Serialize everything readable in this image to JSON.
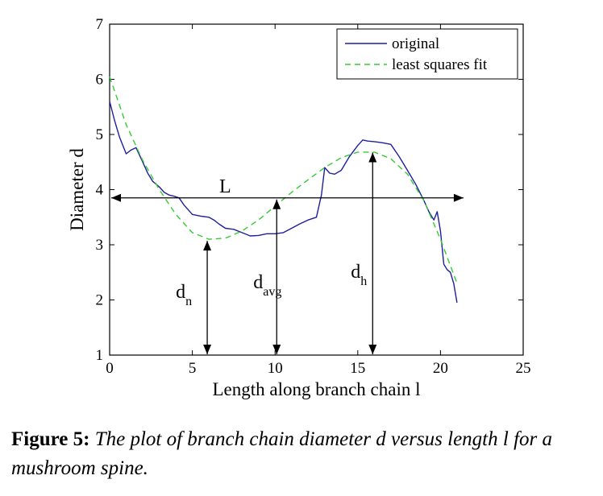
{
  "chart_data": {
    "type": "line",
    "xlabel": "Length along branch chain l",
    "ylabel": "Diameter d",
    "xlim": [
      0,
      25
    ],
    "ylim": [
      1,
      7
    ],
    "xticks": [
      0,
      5,
      10,
      15,
      20,
      25
    ],
    "yticks": [
      1,
      2,
      3,
      4,
      5,
      6,
      7
    ],
    "grid": false,
    "legend_position": "top-right",
    "series": [
      {
        "name": "original",
        "color": "#1f1f9e",
        "style": "solid",
        "x": [
          0,
          0.3,
          0.6,
          1.0,
          1.3,
          1.6,
          2.0,
          2.3,
          2.6,
          3.0,
          3.3,
          3.6,
          3.9,
          4.2,
          4.5,
          5.0,
          5.5,
          6.0,
          6.3,
          6.6,
          7.0,
          7.5,
          8.0,
          8.5,
          9.0,
          9.5,
          10.0,
          10.5,
          11.0,
          11.5,
          12.0,
          12.5,
          12.8,
          13.0,
          13.3,
          13.6,
          14.0,
          14.5,
          15.0,
          15.3,
          15.6,
          16.0,
          16.5,
          17.0,
          17.5,
          18.0,
          18.5,
          19.0,
          19.3,
          19.6,
          19.8,
          20.0,
          20.2,
          20.4,
          20.6,
          20.8,
          21.0
        ],
        "y": [
          5.6,
          5.25,
          4.95,
          4.65,
          4.72,
          4.76,
          4.5,
          4.3,
          4.15,
          4.05,
          3.95,
          3.9,
          3.88,
          3.85,
          3.72,
          3.55,
          3.52,
          3.5,
          3.45,
          3.38,
          3.3,
          3.28,
          3.22,
          3.16,
          3.17,
          3.2,
          3.2,
          3.22,
          3.3,
          3.38,
          3.45,
          3.5,
          3.9,
          4.4,
          4.3,
          4.28,
          4.35,
          4.6,
          4.8,
          4.9,
          4.88,
          4.87,
          4.85,
          4.82,
          4.6,
          4.35,
          4.1,
          3.8,
          3.6,
          3.45,
          3.6,
          3.25,
          2.65,
          2.55,
          2.5,
          2.3,
          1.95
        ]
      },
      {
        "name": "least squares fit",
        "color": "#33cc33",
        "style": "dashed",
        "x": [
          0,
          1,
          2,
          3,
          4,
          5,
          6,
          7,
          8,
          9,
          10,
          11,
          12,
          13,
          14,
          15,
          16,
          17,
          18,
          19,
          20,
          21
        ],
        "y": [
          6.05,
          5.18,
          4.53,
          4.0,
          3.55,
          3.22,
          3.1,
          3.12,
          3.25,
          3.45,
          3.7,
          3.95,
          4.18,
          4.4,
          4.58,
          4.68,
          4.68,
          4.56,
          4.28,
          3.8,
          3.1,
          2.3
        ]
      }
    ],
    "annotations": [
      {
        "label": "L",
        "type": "double-arrow-horizontal",
        "x_from": 0,
        "x_to": 21,
        "y": 3.85
      },
      {
        "label_main": "d",
        "label_sub": "n",
        "type": "double-arrow-vertical",
        "x": 5.9,
        "y_from": 1,
        "y_to": 3.1
      },
      {
        "label_main": "d",
        "label_sub": "avg",
        "type": "double-arrow-vertical",
        "x": 10.1,
        "y_from": 1,
        "y_to": 3.85
      },
      {
        "label_main": "d",
        "label_sub": "h",
        "type": "double-arrow-vertical",
        "x": 15.9,
        "y_from": 1,
        "y_to": 4.7
      }
    ]
  },
  "caption": {
    "label": "Figure 5:",
    "text": " The plot of branch chain diameter d versus length l for a mushroom spine."
  }
}
